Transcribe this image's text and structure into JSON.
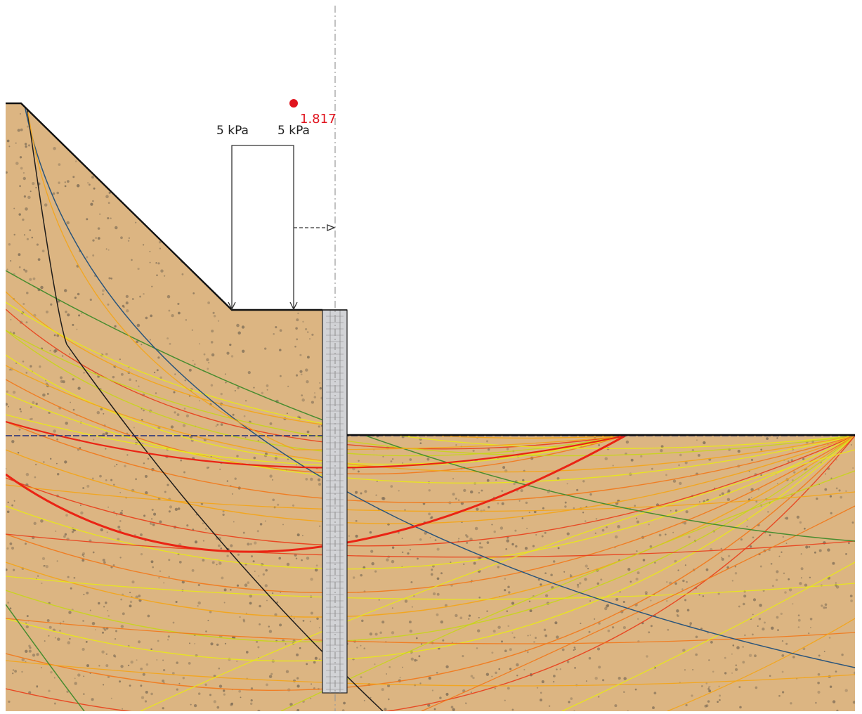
{
  "loads": [
    {
      "label": "5 kPa"
    },
    {
      "label": "5 kPa"
    }
  ],
  "factor_of_safety": {
    "value": "1.817",
    "color": "#e0141e"
  },
  "colors": {
    "soil": "#dcb582",
    "soil_dots": "#7a6a55",
    "terrain_line": "#111111",
    "wall_fill": "#d2d3d6",
    "axis_line": "#999999",
    "water_line": "#1d2a7a",
    "critical_surface": "#ea2414",
    "surface_palette": [
      "#e8e61c",
      "#c8d41e",
      "#f2a51a",
      "#f07a1e",
      "#e8421e",
      "#3f8a2a",
      "#1f4f7a",
      "#141414"
    ]
  }
}
